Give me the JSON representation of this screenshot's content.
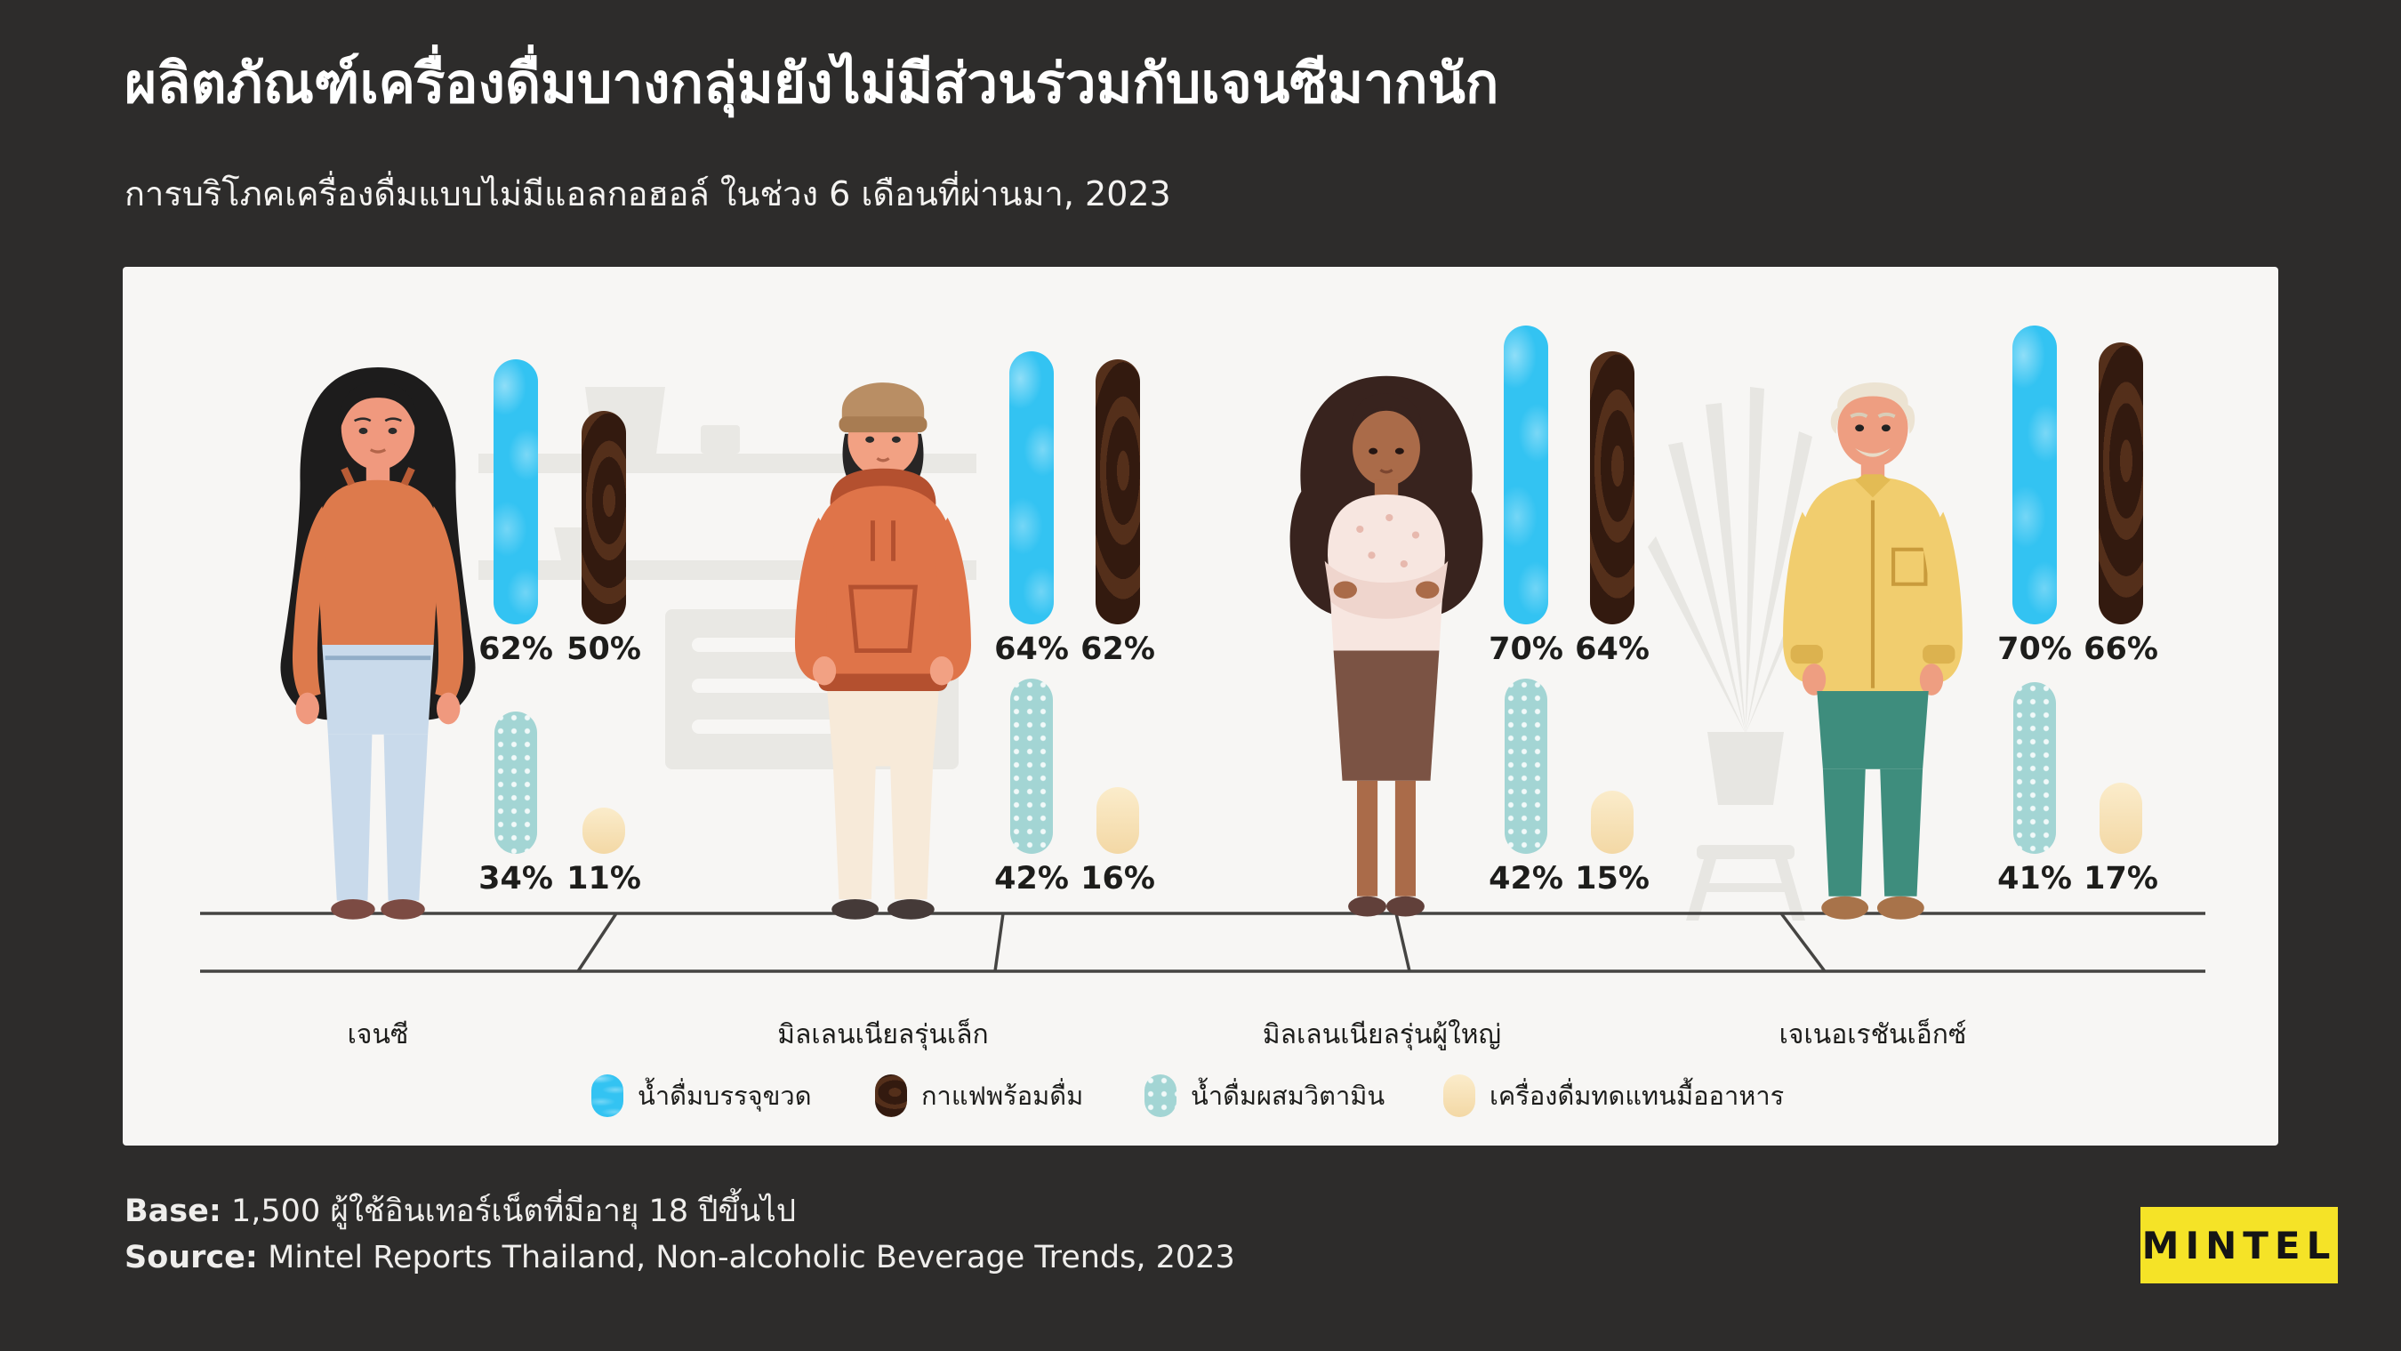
{
  "title": "ผลิตภัณฑ์เครื่องดื่มบางกลุ่มยังไม่มีส่วนร่วมกับเจนซีมากนัก",
  "subtitle": "การบริโภคเครื่องดื่มแบบไม่มีแอลกอฮอล์ ในช่วง 6 เดือนที่ผ่านมา, 2023",
  "colors": {
    "background": "#2d2c2b",
    "card": "#f7f6f4",
    "accent_yellow": "#f5e327",
    "text_dark": "#1d1d1b",
    "text_light": "#ffffff"
  },
  "chart_data": {
    "type": "bar",
    "title": "ผลิตภัณฑ์เครื่องดื่มบางกลุ่มยังไม่มีส่วนร่วมกับเจนซีมากนัก",
    "subtitle": "การบริโภคเครื่องดื่มแบบไม่มีแอลกอฮอล์ ในช่วง 6 เดือนที่ผ่านมา, 2023",
    "categories": [
      "เจนซี",
      "มิลเลนเนียลรุ่นเล็ก",
      "มิลเลนเนียลรุ่นผู้ใหญ่",
      "เจเนอเรชันเอ็กซ์"
    ],
    "category_slugs": [
      "gen-z",
      "younger-millennials",
      "older-millennials",
      "gen-x"
    ],
    "series": [
      {
        "name": "น้ำดื่มบรรจุขวด",
        "slug": "bottled-water",
        "color": "#33c3f2",
        "values": [
          62,
          64,
          70,
          70
        ]
      },
      {
        "name": "กาแฟพร้อมดื่ม",
        "slug": "rtd-coffee",
        "color": "#331a0f",
        "values": [
          50,
          62,
          64,
          66
        ]
      },
      {
        "name": "น้ำดื่มผสมวิตามิน",
        "slug": "vitamin-water",
        "color": "#a3d5d4",
        "values": [
          34,
          42,
          42,
          41
        ]
      },
      {
        "name": "เครื่องดื่มทดแทนมื้ออาหาร",
        "slug": "meal-replacement-drink",
        "color": "#f3d8a5",
        "values": [
          11,
          16,
          15,
          17
        ]
      }
    ],
    "value_suffix": "%",
    "ylim": [
      0,
      100
    ],
    "grid": false,
    "legend_position": "bottom"
  },
  "footer": {
    "base_label": "Base:",
    "base_text": "1,500 ผู้ใช้อินเทอร์เน็ตที่มีอายุ 18 ปีขึ้นไป",
    "source_label": "Source:",
    "source_text": "Mintel Reports Thailand, Non-alcoholic Beverage Trends, 2023",
    "logo_text": "MINTEL"
  }
}
